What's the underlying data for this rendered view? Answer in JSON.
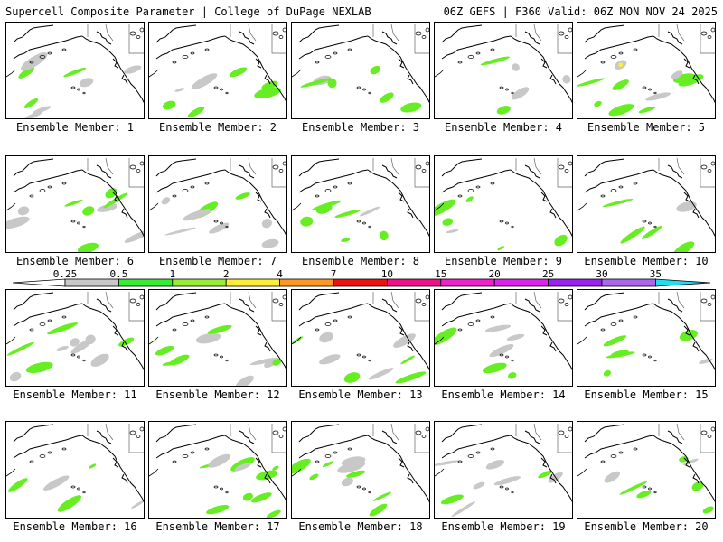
{
  "header": {
    "left": "Supercell Composite Parameter | College of DuPage NEXLAB",
    "right": "06Z GEFS | F360 Valid: 06Z MON NOV 24 2025"
  },
  "colors": {
    "gray": "#c8c8c8",
    "green": "#66ee22",
    "yellow": "#ffee33",
    "coast": "#000000",
    "border": "#666666"
  },
  "colorbar": {
    "labels": [
      "0.25",
      "0.5",
      "1",
      "2",
      "4",
      "7",
      "10",
      "15",
      "20",
      "25",
      "30",
      "35"
    ],
    "colors": [
      "#ffffff",
      "#c8c8c8",
      "#33ee33",
      "#99ee33",
      "#ffee33",
      "#ff9922",
      "#ee1111",
      "#ee1188",
      "#ee22cc",
      "#dd22ee",
      "#9922ee",
      "#aa66ee",
      "#22ddee"
    ]
  },
  "members": [
    {
      "label": "Ensemble Member: 1"
    },
    {
      "label": "Ensemble Member: 2"
    },
    {
      "label": "Ensemble Member: 3"
    },
    {
      "label": "Ensemble Member: 4"
    },
    {
      "label": "Ensemble Member: 5"
    },
    {
      "label": "Ensemble Member: 6"
    },
    {
      "label": "Ensemble Member: 7"
    },
    {
      "label": "Ensemble Member: 8"
    },
    {
      "label": "Ensemble Member: 9"
    },
    {
      "label": "Ensemble Member: 10"
    },
    {
      "label": "Ensemble Member: 11"
    },
    {
      "label": "Ensemble Member: 12"
    },
    {
      "label": "Ensemble Member: 13"
    },
    {
      "label": "Ensemble Member: 14"
    },
    {
      "label": "Ensemble Member: 15"
    },
    {
      "label": "Ensemble Member: 16"
    },
    {
      "label": "Ensemble Member: 17"
    },
    {
      "label": "Ensemble Member: 18"
    },
    {
      "label": "Ensemble Member: 19"
    },
    {
      "label": "Ensemble Member: 20"
    }
  ]
}
